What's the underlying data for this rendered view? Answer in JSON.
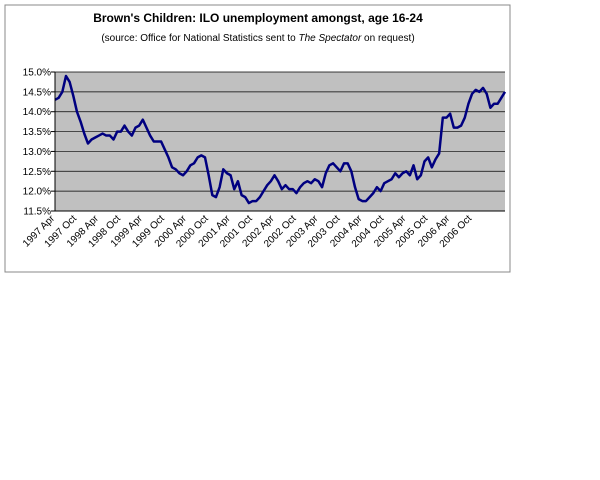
{
  "chart_data": {
    "type": "line",
    "title": "Brown's Children: ILO unemployment amongst, age 16-24",
    "subtitle": [
      "(source: Office for National Statistics sent to ",
      "The Spectator",
      " on request)"
    ],
    "categories": [
      "1997 Apr",
      null,
      null,
      null,
      null,
      null,
      "1997 Oct",
      null,
      null,
      null,
      null,
      null,
      "1998 Apr",
      null,
      null,
      null,
      null,
      null,
      "1998 Oct",
      null,
      null,
      null,
      null,
      null,
      "1999 Apr",
      null,
      null,
      null,
      null,
      null,
      "1999 Oct",
      null,
      null,
      null,
      null,
      null,
      "2000 Apr",
      null,
      null,
      null,
      null,
      null,
      "2000 Oct",
      null,
      null,
      null,
      null,
      null,
      "2001 Apr",
      null,
      null,
      null,
      null,
      null,
      "2001 Oct",
      null,
      null,
      null,
      null,
      null,
      "2002 Apr",
      null,
      null,
      null,
      null,
      null,
      "2002 Oct",
      null,
      null,
      null,
      null,
      null,
      "2003 Apr",
      null,
      null,
      null,
      null,
      null,
      "2003 Oct",
      null,
      null,
      null,
      null,
      null,
      "2004 Apr",
      null,
      null,
      null,
      null,
      null,
      "2004 Oct",
      null,
      null,
      null,
      null,
      null,
      "2005 Apr",
      null,
      null,
      null,
      null,
      null,
      "2005 Oct",
      null,
      null,
      null,
      null,
      null,
      "2006 Apr",
      null,
      null,
      null,
      null,
      null,
      "2006 Oct",
      null,
      null,
      null,
      null,
      null,
      null,
      null,
      null,
      null
    ],
    "values": [
      14.3,
      14.35,
      14.5,
      14.9,
      14.75,
      14.4,
      14.0,
      13.75,
      13.45,
      13.2,
      13.3,
      13.35,
      13.4,
      13.45,
      13.4,
      13.4,
      13.3,
      13.5,
      13.5,
      13.65,
      13.5,
      13.4,
      13.6,
      13.65,
      13.8,
      13.6,
      13.4,
      13.25,
      13.25,
      13.25,
      13.05,
      12.85,
      12.6,
      12.55,
      12.45,
      12.4,
      12.5,
      12.65,
      12.7,
      12.85,
      12.9,
      12.85,
      12.4,
      11.9,
      11.85,
      12.1,
      12.55,
      12.45,
      12.4,
      12.05,
      12.25,
      11.9,
      11.85,
      11.7,
      11.75,
      11.75,
      11.85,
      12.0,
      12.15,
      12.25,
      12.4,
      12.25,
      12.05,
      12.15,
      12.05,
      12.05,
      11.95,
      12.1,
      12.2,
      12.25,
      12.2,
      12.3,
      12.25,
      12.1,
      12.45,
      12.65,
      12.7,
      12.6,
      12.5,
      12.7,
      12.7,
      12.5,
      12.1,
      11.8,
      11.75,
      11.75,
      11.85,
      11.95,
      12.1,
      12.0,
      12.2,
      12.25,
      12.3,
      12.45,
      12.35,
      12.45,
      12.5,
      12.4,
      12.65,
      12.3,
      12.4,
      12.75,
      12.85,
      12.6,
      12.8,
      12.95,
      13.85,
      13.85,
      13.95,
      13.6,
      13.6,
      13.65,
      13.85,
      14.2,
      14.45,
      14.55,
      14.5,
      14.6,
      14.45,
      14.1,
      14.2,
      14.2,
      14.35,
      14.5
    ],
    "color": "#000080",
    "ylim": [
      11.5,
      15.0
    ],
    "yticks": [
      {
        "value": 11.5,
        "label": "11.5%"
      },
      {
        "value": 12.0,
        "label": "12.0%"
      },
      {
        "value": 12.5,
        "label": "12.5%"
      },
      {
        "value": 13.0,
        "label": "13.0%"
      },
      {
        "value": 13.5,
        "label": "13.5%"
      },
      {
        "value": 14.0,
        "label": "14.0%"
      },
      {
        "value": 14.5,
        "label": "14.5%"
      },
      {
        "value": 15.0,
        "label": "15.0%"
      }
    ],
    "grid": true
  }
}
